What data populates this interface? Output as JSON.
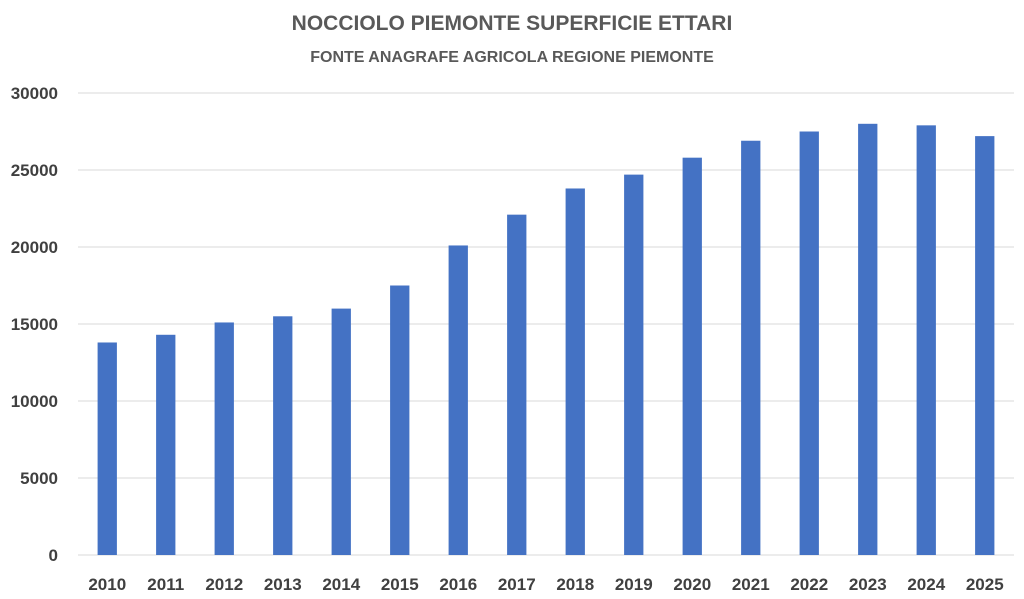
{
  "chart_data": {
    "type": "bar",
    "title": "NOCCIOLO PIEMONTE SUPERFICIE ETTARI",
    "subtitle": "FONTE ANAGRAFE AGRICOLA REGIONE PIEMONTE",
    "xlabel": "",
    "ylabel": "",
    "categories": [
      "2010",
      "2011",
      "2012",
      "2013",
      "2014",
      "2015",
      "2016",
      "2017",
      "2018",
      "2019",
      "2020",
      "2021",
      "2022",
      "2023",
      "2024",
      "2025"
    ],
    "values": [
      13800,
      14300,
      15100,
      15500,
      16000,
      17500,
      20100,
      22100,
      23800,
      24700,
      25800,
      26900,
      27500,
      28000,
      27900,
      27200
    ],
    "ylim": [
      0,
      30000
    ],
    "yticks": [
      0,
      5000,
      10000,
      15000,
      20000,
      25000,
      30000
    ],
    "grid": true,
    "legend": "none",
    "colors": {
      "bar": "#4472c4",
      "title": "#595959",
      "tick_label": "#404040",
      "grid": "#d9d9d9"
    }
  }
}
